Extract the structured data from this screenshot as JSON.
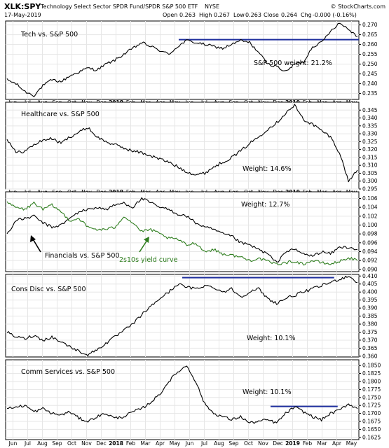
{
  "header": {
    "symbol": "XLK:SPY",
    "description": "Technology Select Sector SPDR Fund/SPDR S&P 500 ETF",
    "exchange": "NYSE",
    "credit": "© StockCharts.com",
    "date": "17-May-2019",
    "open_label": "Open",
    "open_value": "0.263",
    "high_label": "High",
    "high_value": "0.267",
    "low_label": "Low",
    "low_value": "0.263",
    "close_label": "Close",
    "close_value": "0.264",
    "chg_label": "Chg",
    "chg_value": "-0.000 (-0.16%)"
  },
  "colors": {
    "price_line": "#000000",
    "yield_curve": "#2e7d1e",
    "resistance": "#1f2f9e",
    "grid": "#e6e6e6",
    "panel_border": "#000000"
  },
  "chart_data": [
    {
      "type": "line",
      "title": "Tech vs. S&P 500",
      "annotation": "S&P 500 weight: 21.2%",
      "ylim": [
        0.232,
        0.272
      ],
      "yticks": [
        "0.270",
        "0.265",
        "0.260",
        "0.255",
        "0.250",
        "0.245",
        "0.240",
        "0.235"
      ],
      "resistance": {
        "from": 0.49,
        "to": 1.0,
        "value": 0.2625
      },
      "series": [
        {
          "values": [
            0.242,
            0.24,
            0.236,
            0.234,
            0.239,
            0.242,
            0.241,
            0.244,
            0.246,
            0.248,
            0.247,
            0.25,
            0.252,
            0.255,
            0.258,
            0.261,
            0.259,
            0.257,
            0.255,
            0.259,
            0.262,
            0.261,
            0.26,
            0.259,
            0.258,
            0.26,
            0.262,
            0.261,
            0.256,
            0.25,
            0.249,
            0.246,
            0.25,
            0.251,
            0.259,
            0.261,
            0.267,
            0.271,
            0.268,
            0.264
          ]
        }
      ]
    },
    {
      "type": "line",
      "title": "Healthcare vs. S&P 500",
      "annotation": "Weight: 14.6%",
      "ylim": [
        0.295,
        0.35
      ],
      "yticks": [
        "0.345",
        "0.340",
        "0.335",
        "0.330",
        "0.325",
        "0.320",
        "0.315",
        "0.310",
        "0.305",
        "0.300",
        "0.295"
      ],
      "series": [
        {
          "values": [
            0.327,
            0.318,
            0.319,
            0.323,
            0.326,
            0.327,
            0.324,
            0.328,
            0.331,
            0.334,
            0.328,
            0.325,
            0.323,
            0.321,
            0.319,
            0.318,
            0.316,
            0.314,
            0.312,
            0.309,
            0.306,
            0.304,
            0.305,
            0.309,
            0.312,
            0.315,
            0.319,
            0.324,
            0.328,
            0.333,
            0.337,
            0.343,
            0.348,
            0.339,
            0.336,
            0.332,
            0.328,
            0.318,
            0.3,
            0.307
          ]
        }
      ]
    },
    {
      "type": "line",
      "title": "Financials vs. S&P 500",
      "annotation": "Weight: 12.7%",
      "annotation2": "2s10s yield curve",
      "ylim": [
        0.0895,
        0.1075
      ],
      "yticks": [
        "0.106",
        "0.104",
        "0.102",
        "0.100",
        "0.098",
        "0.096",
        "0.094",
        "0.092",
        "0.090"
      ],
      "series": [
        {
          "values": [
            0.098,
            0.101,
            0.1015,
            0.102,
            0.1005,
            0.0995,
            0.1,
            0.1015,
            0.103,
            0.1035,
            0.104,
            0.1035,
            0.1045,
            0.105,
            0.104,
            0.106,
            0.105,
            0.104,
            0.1035,
            0.1025,
            0.102,
            0.1005,
            0.0995,
            0.099,
            0.098,
            0.0975,
            0.096,
            0.0955,
            0.0945,
            0.0935,
            0.0915,
            0.094,
            0.0945,
            0.0935,
            0.093,
            0.094,
            0.0935,
            0.095,
            0.095,
            0.0945
          ]
        },
        {
          "values": [
            0.105,
            0.104,
            0.1035,
            0.105,
            0.1035,
            0.1045,
            0.103,
            0.101,
            0.1015,
            0.0995,
            0.099,
            0.099,
            0.0995,
            0.102,
            0.1005,
            0.0985,
            0.099,
            0.098,
            0.097,
            0.0968,
            0.0955,
            0.096,
            0.094,
            0.0945,
            0.0935,
            0.0932,
            0.0928,
            0.092,
            0.0925,
            0.0918,
            0.0912,
            0.0915,
            0.0918,
            0.0912,
            0.092,
            0.0915,
            0.0912,
            0.0918,
            0.0926,
            0.092
          ]
        }
      ]
    },
    {
      "type": "line",
      "title": "Cons Disc vs. S&P 500",
      "annotation": "Weight: 10.1%",
      "ylim": [
        0.3595,
        0.411
      ],
      "yticks": [
        "0.410",
        "0.405",
        "0.400",
        "0.395",
        "0.390",
        "0.385",
        "0.380",
        "0.375",
        "0.370",
        "0.365",
        "0.360"
      ],
      "resistance": {
        "from": 0.5,
        "to": 0.93,
        "value": 0.409
      },
      "series": [
        {
          "values": [
            0.375,
            0.372,
            0.371,
            0.373,
            0.37,
            0.372,
            0.369,
            0.366,
            0.363,
            0.361,
            0.364,
            0.368,
            0.372,
            0.376,
            0.38,
            0.386,
            0.391,
            0.396,
            0.4,
            0.405,
            0.403,
            0.402,
            0.404,
            0.403,
            0.4,
            0.402,
            0.397,
            0.4,
            0.402,
            0.396,
            0.393,
            0.396,
            0.398,
            0.4,
            0.402,
            0.404,
            0.406,
            0.408,
            0.41,
            0.406
          ]
        }
      ]
    },
    {
      "type": "line",
      "title": "Comm Services vs. S&P 500",
      "annotation": "Weight: 10.1%",
      "ylim": [
        0.1618,
        0.1868
      ],
      "yticks": [
        "0.1850",
        "0.1825",
        "0.1800",
        "0.1775",
        "0.1750",
        "0.1725",
        "0.1700",
        "0.1675",
        "0.1650",
        "0.1625"
      ],
      "resistance": {
        "from": 0.75,
        "to": 0.94,
        "value": 0.1722
      },
      "series": [
        {
          "values": [
            0.1715,
            0.172,
            0.1725,
            0.1705,
            0.1715,
            0.17,
            0.1695,
            0.1705,
            0.1685,
            0.1675,
            0.169,
            0.17,
            0.1685,
            0.169,
            0.1705,
            0.1715,
            0.1735,
            0.176,
            0.18,
            0.183,
            0.185,
            0.18,
            0.173,
            0.17,
            0.169,
            0.168,
            0.169,
            0.167,
            0.1675,
            0.168,
            0.167,
            0.17,
            0.172,
            0.1705,
            0.169,
            0.168,
            0.17,
            0.171,
            0.173,
            0.1715
          ]
        }
      ]
    }
  ],
  "x_axis": {
    "labels": [
      "Jun",
      "Jul",
      "Aug",
      "Sep",
      "Oct",
      "Nov",
      "Dec",
      "2018",
      "Feb",
      "Mar",
      "Apr",
      "May",
      "Jun",
      "Jul",
      "Aug",
      "Sep",
      "Oct",
      "Nov",
      "Dec",
      "2019",
      "Feb",
      "Mar",
      "Apr",
      "May"
    ],
    "bold_labels": [
      "2018",
      "2019"
    ]
  }
}
